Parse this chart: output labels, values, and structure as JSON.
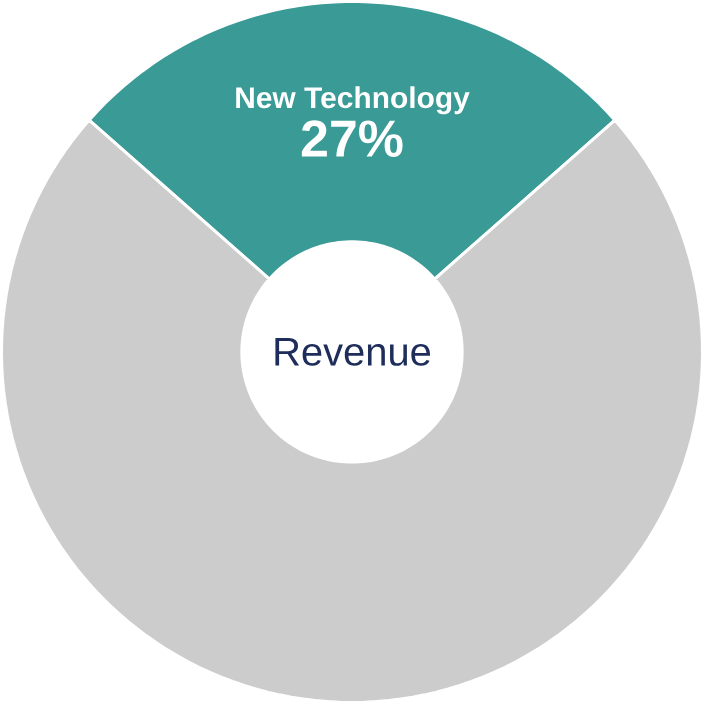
{
  "chart_data": {
    "type": "donut",
    "categories": [
      "New Technology",
      null
    ],
    "values": [
      27,
      73
    ],
    "colors": [
      "#3a9a96",
      "#cccccc"
    ],
    "value_labels": [
      "27%",
      null
    ],
    "annotations": [
      "Revenue"
    ]
  }
}
